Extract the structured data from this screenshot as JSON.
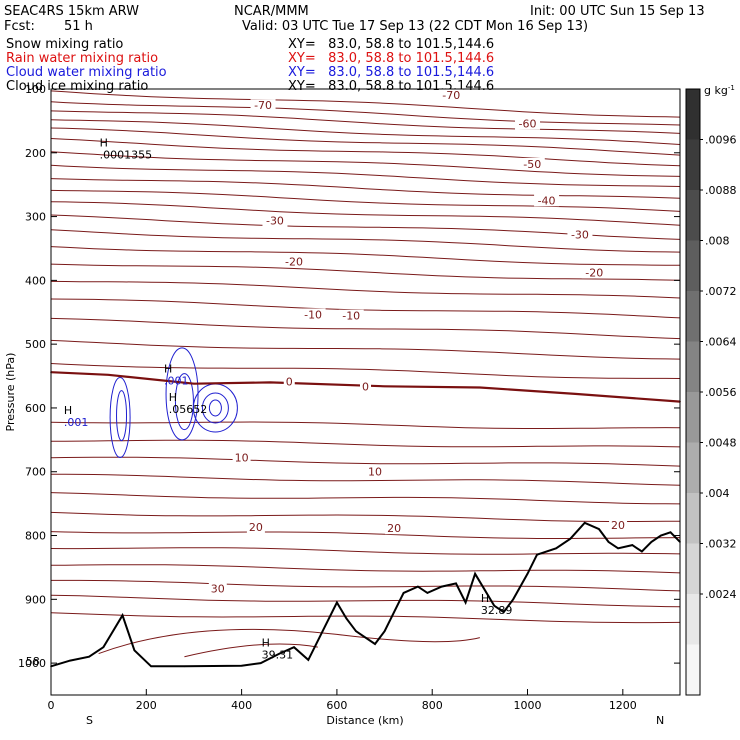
{
  "header": {
    "model": "SEAC4RS 15km ARW",
    "center": "NCAR/MMM",
    "init": "Init: 00 UTC Sun 15 Sep 13",
    "fcst_label": "Fcst:",
    "fcst_value": "51 h",
    "valid": "Valid: 03 UTC Tue 17 Sep 13 (22 CDT Mon 16 Sep 13)",
    "fields": [
      {
        "name": "Snow mixing ratio",
        "xy": "XY=   83.0, 58.8 to 101.5,144.6",
        "color": "#000000"
      },
      {
        "name": "Rain water mixing ratio",
        "xy": "XY=   83.0, 58.8 to 101.5,144.6",
        "color": "#dd1111"
      },
      {
        "name": "Cloud water mixing ratio",
        "xy": "XY=   83.0, 58.8 to 101.5,144.6",
        "color": "#1a1adc"
      },
      {
        "name": "Cloud ice mixing ratio",
        "xy": "XY=   83.0, 58.8 to 101.5,144.6",
        "color": "#000000"
      }
    ]
  },
  "chart_data": {
    "type": "line",
    "xlabel": "Distance (km)",
    "ylabel": "Pressure (hPa)",
    "xlim": [
      0,
      1320
    ],
    "ylim": [
      1050,
      100
    ],
    "x_ticks": [
      0,
      200,
      400,
      600,
      800,
      1000,
      1200
    ],
    "y_ticks": [
      100,
      200,
      300,
      400,
      500,
      600,
      700,
      800,
      900,
      1000
    ],
    "x_ends": [
      "S",
      "N"
    ],
    "colorbar": {
      "unit": "g kg",
      "unit_exp": "-1",
      "ticks": [
        ".0096",
        ".0088",
        ".008",
        ".0072",
        ".0064",
        ".0056",
        ".0048",
        ".004",
        ".0032",
        ".0024"
      ],
      "colors_top_to_bottom": [
        "#303030",
        "#3c3c3c",
        "#4c4c4c",
        "#5e5e5e",
        "#707070",
        "#848484",
        "#999999",
        "#adadad",
        "#c2c2c2",
        "#d6d6d6",
        "#e8e8e8",
        "#f6f6f6"
      ]
    },
    "temperature_labels": [
      {
        "text": "-70",
        "x": 445,
        "p": 127
      },
      {
        "text": "-70",
        "x": 840,
        "p": 111
      },
      {
        "text": "-60",
        "x": 1000,
        "p": 156
      },
      {
        "text": "-50",
        "x": 1010,
        "p": 219
      },
      {
        "text": "-40",
        "x": 1040,
        "p": 276
      },
      {
        "text": "-30",
        "x": 470,
        "p": 308
      },
      {
        "text": "-30",
        "x": 1110,
        "p": 330
      },
      {
        "text": "-20",
        "x": 510,
        "p": 372
      },
      {
        "text": "-20",
        "x": 1140,
        "p": 389
      },
      {
        "text": "-10",
        "x": 550,
        "p": 455
      },
      {
        "text": "-10",
        "x": 630,
        "p": 457
      },
      {
        "text": "0",
        "x": 500,
        "p": 560
      },
      {
        "text": "0",
        "x": 660,
        "p": 568
      },
      {
        "text": "10",
        "x": 400,
        "p": 679
      },
      {
        "text": "10",
        "x": 680,
        "p": 701
      },
      {
        "text": "20",
        "x": 430,
        "p": 788
      },
      {
        "text": "20",
        "x": 720,
        "p": 790
      },
      {
        "text": "20",
        "x": 1190,
        "p": 785
      },
      {
        "text": "30",
        "x": 350,
        "p": 885
      }
    ],
    "annotations": [
      {
        "marker": "H",
        "value": ".0001355",
        "x": 165,
        "p": 206
      },
      {
        "marker": "H",
        "value": ".001",
        "x": 90,
        "p": 625
      },
      {
        "marker": "H",
        "value": ".001",
        "x": 300,
        "p": 560
      },
      {
        "marker": "H",
        "value": ".05652",
        "x": 310,
        "p": 605
      },
      {
        "marker": "H",
        "value": "39.31",
        "x": 505,
        "p": 990
      },
      {
        "marker": "H",
        "value": "32.89",
        "x": 965,
        "p": 920
      },
      {
        "marker": "",
        "value": "58",
        "x": 10,
        "p": 1000
      }
    ],
    "series": [
      {
        "name": "",
        "kind": "freezing-level",
        "color": "#7a1010",
        "x": [
          0,
          120,
          300,
          460,
          700,
          900,
          1100,
          1320
        ],
        "y": [
          544,
          548,
          562,
          560,
          566,
          568,
          578,
          590
        ]
      },
      {
        "name": "",
        "kind": "terrain",
        "color": "#000000",
        "x": [
          0,
          40,
          80,
          110,
          150,
          175,
          210,
          280,
          400,
          440,
          480,
          510,
          540,
          570,
          600,
          620,
          640,
          680,
          700,
          740,
          770,
          790,
          820,
          850,
          870,
          890,
          930,
          950,
          970,
          1000,
          1020,
          1060,
          1090,
          1120,
          1150,
          1170,
          1190,
          1220,
          1240,
          1260,
          1280,
          1300,
          1320
        ],
        "y": [
          1005,
          996,
          990,
          975,
          925,
          980,
          1005,
          1005,
          1004,
          1000,
          985,
          975,
          995,
          950,
          905,
          930,
          950,
          970,
          950,
          890,
          880,
          890,
          880,
          875,
          905,
          860,
          910,
          920,
          900,
          860,
          830,
          820,
          805,
          780,
          790,
          810,
          820,
          815,
          825,
          810,
          800,
          795,
          810
        ]
      }
    ]
  }
}
